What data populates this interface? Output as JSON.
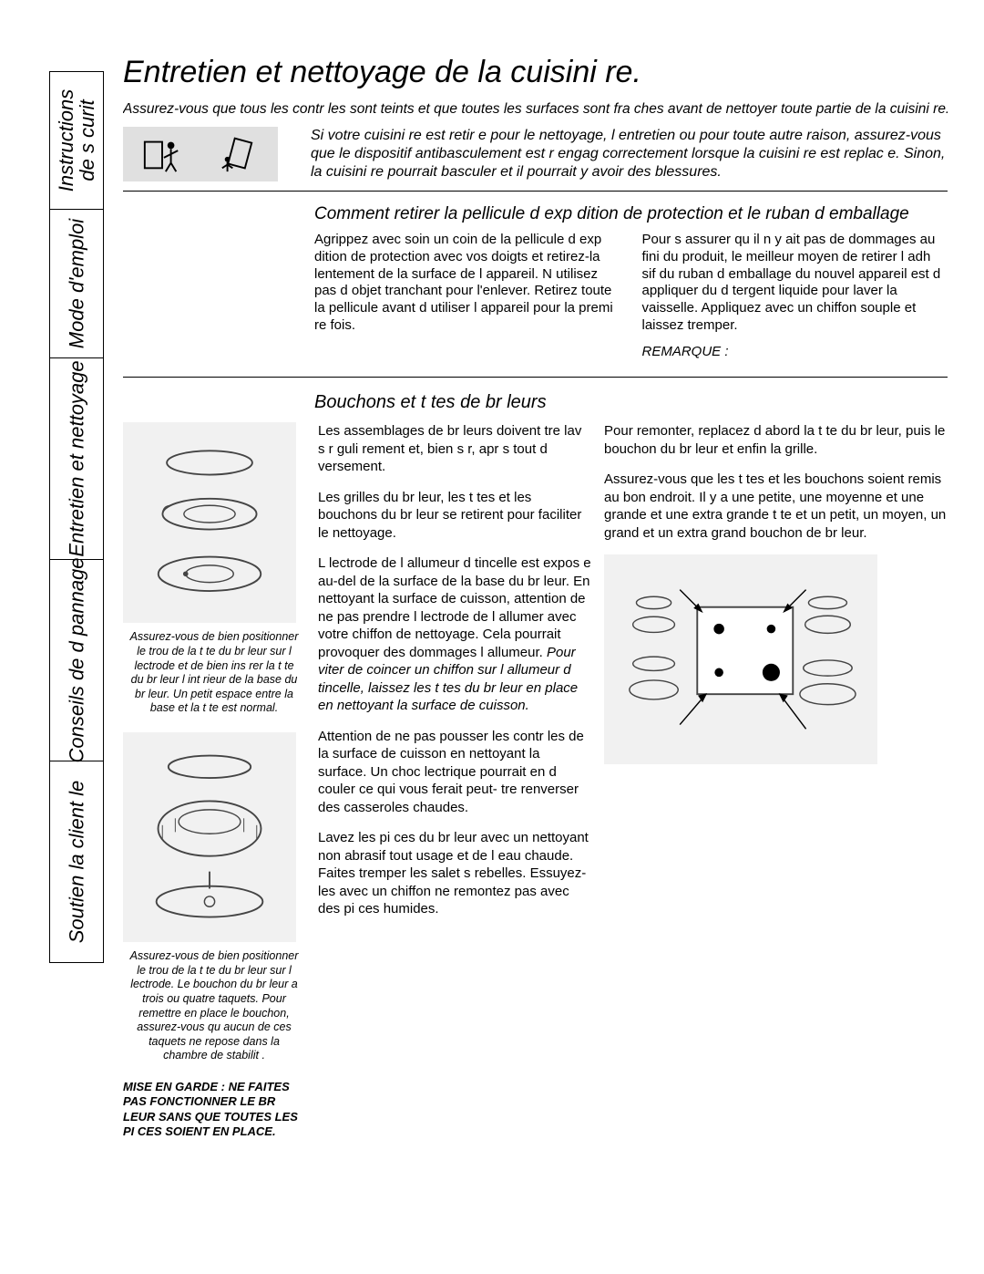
{
  "sideTabs": [
    {
      "label": "Instructions\nde s curit"
    },
    {
      "label": "Mode d'emploi"
    },
    {
      "label": "Entretien et nettoyage"
    },
    {
      "label": "Conseils de d pannage"
    },
    {
      "label": "Soutien   la client le"
    }
  ],
  "title": "Entretien et nettoyage de la cuisini re.",
  "introLine": "Assurez-vous que tous les contr les sont  teints et que toutes les surfaces sont fra ches avant de nettoyer toute partie de la cuisini re.",
  "warningText": "Si votre cuisini re est retir e pour le nettoyage, l entretien ou pour toute autre raison, assurez-vous que le dispositif antibasculement est r engag  correctement lorsque la cuisini re est replac e. Sinon, la cuisini re pourrait basculer et il pourrait y avoir des blessures.",
  "section1": {
    "heading": "Comment retirer la pellicule d exp dition de protection et le ruban d emballage",
    "colLeft": "Agrippez avec soin un coin de la pellicule d exp dition de protection avec vos doigts et retirez-la lentement de la surface de l appareil. N utilisez pas d objet tranchant pour l'enlever. Retirez toute la pellicule avant d utiliser l appareil pour la premi re fois.",
    "colRight": "Pour s assurer qu il n y ait pas de dommages au fini du produit, le meilleur moyen de retirer l adh sif du ruban d emballage du nouvel appareil est d appliquer du d tergent liquide pour laver la vaisselle. Appliquez avec un chiffon souple et laissez tremper.",
    "remarque": "REMARQUE :"
  },
  "section2": {
    "heading": "Bouchons et t tes de br leurs",
    "fig1Caption": "Assurez-vous de bien positionner le trou de la t te du br leur sur l  lectrode et de bien ins rer la t te du br leur   l int rieur de la base du br leur. Un petit espace entre la base et la t te est normal.",
    "fig2Caption": "Assurez-vous de bien positionner le trou de la t te du br leur sur l  lectrode. Le bouchon du br leur a trois ou quatre taquets. Pour remettre en place le bouchon, assurez-vous qu aucun de ces taquets ne repose dans la chambre de stabilit .",
    "warningSmall": "MISE EN GARDE : NE FAITES PAS FONCTIONNER LE BR LEUR SANS QUE TOUTES LES PI CES SOIENT EN PLACE.",
    "p1": "Les assemblages de br leurs doivent  tre lav s r guli rement et, bien s r, apr s tout d versement.",
    "p2": "Les grilles du br leur, les t tes et les bouchons du br leur se retirent pour faciliter le nettoyage.",
    "p3a": "L  lectrode de l allumeur d  tincelle est expos e au-del  de la surface de la base du br leur. En nettoyant la surface de cuisson, attention de ne pas prendre l  lectrode de l allumer avec votre chiffon de nettoyage. Cela pourrait provoquer des dommages   l allumeur. ",
    "p3b": "Pour  viter de coincer un chiffon sur l allumeur d  tincelle, laissez les t tes du br leur en place en nettoyant la surface de cuisson.",
    "p4": "Attention de ne pas pousser les contr les de la surface de cuisson en nettoyant la surface. Un choc  lectrique pourrait en d couler ce qui vous ferait peut- tre renverser des casseroles chaudes.",
    "p5": "Lavez les pi ces du br leur avec un nettoyant non abrasif tout usage et de l eau chaude. Faites tremper les salet s rebelles. Essuyez-les avec un chiffon ne remontez pas avec des pi ces humides.",
    "r1": "Pour remonter, replacez d abord la t te du br leur, puis le bouchon du br leur et enfin la grille.",
    "r2": "Assurez-vous que les t tes et les bouchons soient remis au bon endroit. Il y a une petite, une moyenne et une grande et une extra grande t te et un petit, un moyen, un grand et un extra grand bouchon de br leur."
  },
  "colors": {
    "figureBg": "#f1f1f1",
    "iconBoxBg": "#e0e0e0",
    "rule": "#000000"
  }
}
